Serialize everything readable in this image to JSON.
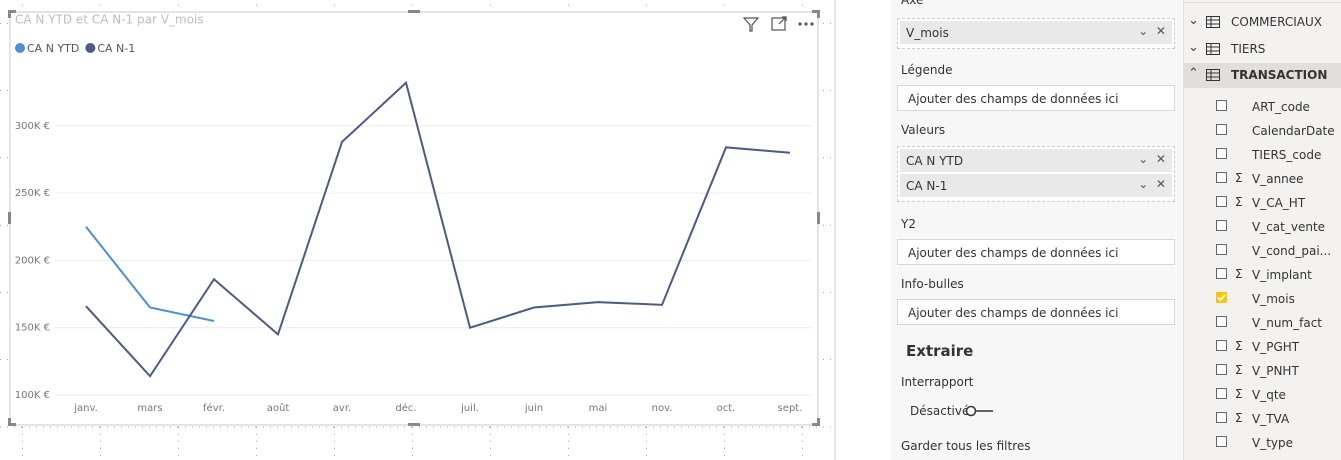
{
  "chart_data": {
    "type": "line",
    "title": "CA N YTD et CA N-1 par V_mois",
    "categories": [
      "janv.",
      "mars",
      "févr.",
      "août",
      "avr.",
      "déc.",
      "juil.",
      "juin",
      "mai",
      "nov.",
      "oct.",
      "sept."
    ],
    "series": [
      {
        "name": "CA N YTD",
        "color": "#4a90d9",
        "values": [
          225000,
          165000,
          155000,
          null,
          null,
          null,
          null,
          null,
          null,
          null,
          null,
          null
        ]
      },
      {
        "name": "CA N-1",
        "color": "#4b5a87",
        "values": [
          166000,
          114000,
          186000,
          145000,
          288000,
          332000,
          150000,
          165000,
          169000,
          167000,
          284000,
          280000
        ]
      }
    ],
    "ylim": [
      100000,
      350000
    ],
    "yticks": [
      {
        "value": 100000,
        "label": "100K €"
      },
      {
        "value": 150000,
        "label": "150K €"
      },
      {
        "value": 200000,
        "label": "200K €"
      },
      {
        "value": 250000,
        "label": "250K €"
      },
      {
        "value": 300000,
        "label": "300K €"
      }
    ],
    "grid": true,
    "legend": "top-left"
  },
  "visualizations_pane": {
    "wells": [
      {
        "label": "Axe",
        "fields": [
          "V_mois"
        ]
      },
      {
        "label": "Légende",
        "placeholder": "Ajouter des champs de données ici"
      },
      {
        "label": "Valeurs",
        "fields": [
          "CA N YTD",
          "CA N-1"
        ]
      },
      {
        "label": "Y2",
        "placeholder": "Ajouter des champs de données ici"
      },
      {
        "label": "Info-bulles",
        "placeholder": "Ajouter des champs de données ici"
      }
    ],
    "drillthrough": {
      "title": "Extraire",
      "cross_report_label": "Interrapport",
      "toggle": "Désactivé",
      "keep_filters_label": "Garder tous les filtres"
    }
  },
  "fields_pane": {
    "tables": [
      {
        "name": "COMMERCIAUX",
        "expanded": false
      },
      {
        "name": "TIERS",
        "expanded": false
      },
      {
        "name": "TRANSACTION",
        "expanded": true
      }
    ],
    "fields": [
      {
        "name": "ART_code",
        "sum": false,
        "checked": false
      },
      {
        "name": "CalendarDate",
        "sum": false,
        "checked": false
      },
      {
        "name": "TIERS_code",
        "sum": false,
        "checked": false
      },
      {
        "name": "V_annee",
        "sum": true,
        "checked": false
      },
      {
        "name": "V_CA_HT",
        "sum": true,
        "checked": false
      },
      {
        "name": "V_cat_vente",
        "sum": false,
        "checked": false
      },
      {
        "name": "V_cond_pai...",
        "sum": false,
        "checked": false
      },
      {
        "name": "V_implant",
        "sum": true,
        "checked": false
      },
      {
        "name": "V_mois",
        "sum": false,
        "checked": true
      },
      {
        "name": "V_num_fact",
        "sum": false,
        "checked": false
      },
      {
        "name": "V_PGHT",
        "sum": true,
        "checked": false
      },
      {
        "name": "V_PNHT",
        "sum": true,
        "checked": false
      },
      {
        "name": "V_qte",
        "sum": true,
        "checked": false
      },
      {
        "name": "V_TVA",
        "sum": true,
        "checked": false
      },
      {
        "name": "V_type",
        "sum": false,
        "checked": false
      }
    ]
  }
}
